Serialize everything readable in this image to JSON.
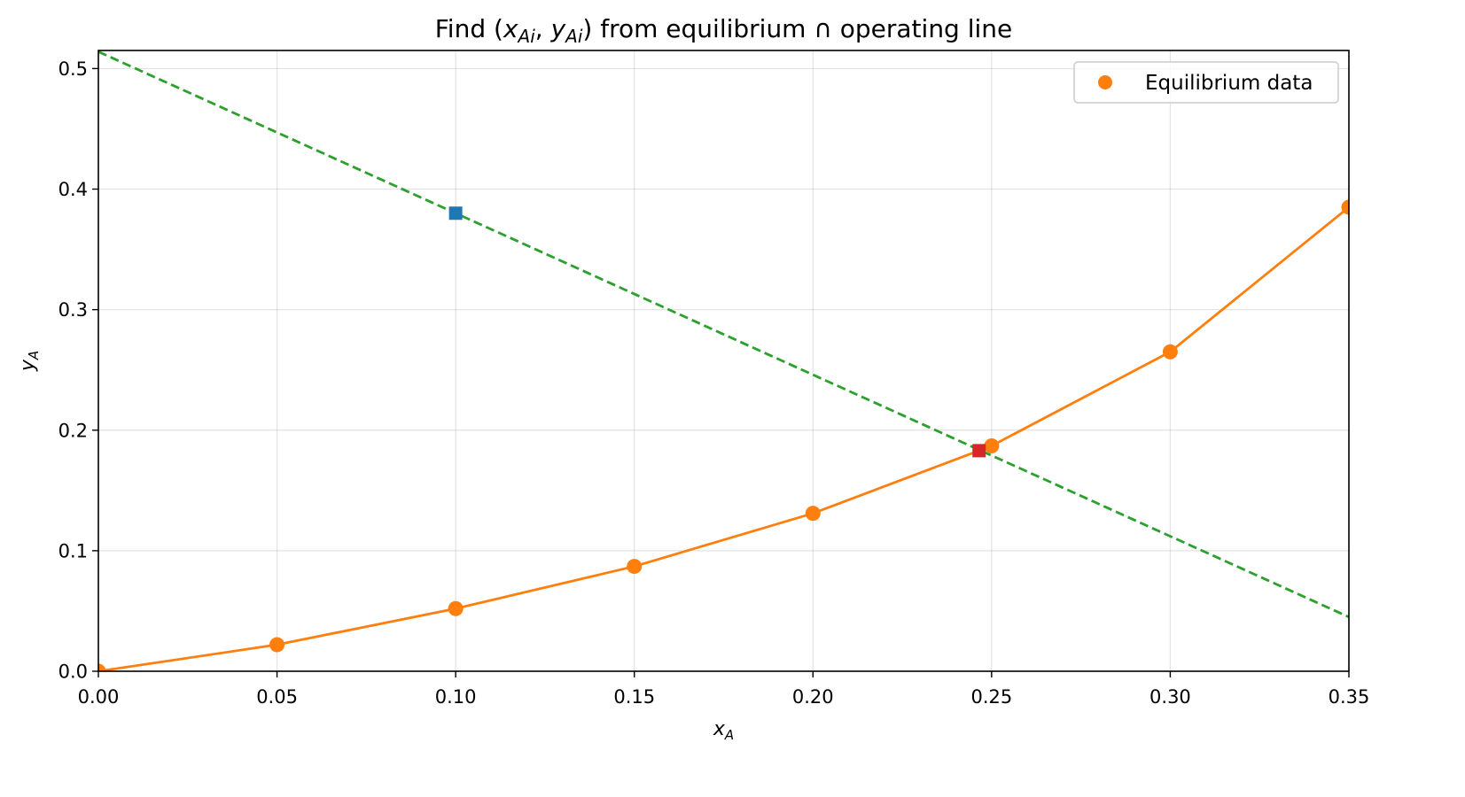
{
  "chart_data": {
    "type": "line",
    "title_parts": {
      "prefix": "Find (",
      "x_sym": "x",
      "x_sub": "Ai",
      "sep": ", ",
      "y_sym": "y",
      "y_sub": "Ai",
      "suffix": ") from equilibrium ∩ operating line"
    },
    "xlabel": {
      "sym": "x",
      "sub": "A"
    },
    "ylabel": {
      "sym": "y",
      "sub": "A"
    },
    "xlim": [
      0,
      0.35
    ],
    "ylim": [
      0,
      0.515
    ],
    "xticks": [
      0.0,
      0.05,
      0.1,
      0.15,
      0.2,
      0.25,
      0.3,
      0.35
    ],
    "xtick_labels": [
      "0.00",
      "0.05",
      "0.10",
      "0.15",
      "0.20",
      "0.25",
      "0.30",
      "0.35"
    ],
    "yticks": [
      0.0,
      0.1,
      0.2,
      0.3,
      0.4,
      0.5
    ],
    "ytick_labels": [
      "0.0",
      "0.1",
      "0.2",
      "0.3",
      "0.4",
      "0.5"
    ],
    "grid": true,
    "legend": {
      "position": "top-right",
      "entries": [
        "Equilibrium data"
      ]
    },
    "series": [
      {
        "name": "Equilibrium data",
        "style": "line-with-markers",
        "color": "#ff7f0e",
        "x": [
          0.0,
          0.05,
          0.1,
          0.15,
          0.2,
          0.25,
          0.3,
          0.35
        ],
        "y": [
          0.0,
          0.022,
          0.052,
          0.087,
          0.131,
          0.187,
          0.265,
          0.385
        ]
      },
      {
        "style": "dashed-line",
        "color": "#2ca02c",
        "x": [
          0.0,
          0.35
        ],
        "y": [
          0.514,
          0.045
        ]
      }
    ],
    "points": [
      {
        "x": 0.1,
        "y": 0.38,
        "marker": "square",
        "color": "#1f77b4"
      },
      {
        "x": 0.2465,
        "y": 0.183,
        "marker": "square",
        "color": "#d62728"
      }
    ]
  }
}
